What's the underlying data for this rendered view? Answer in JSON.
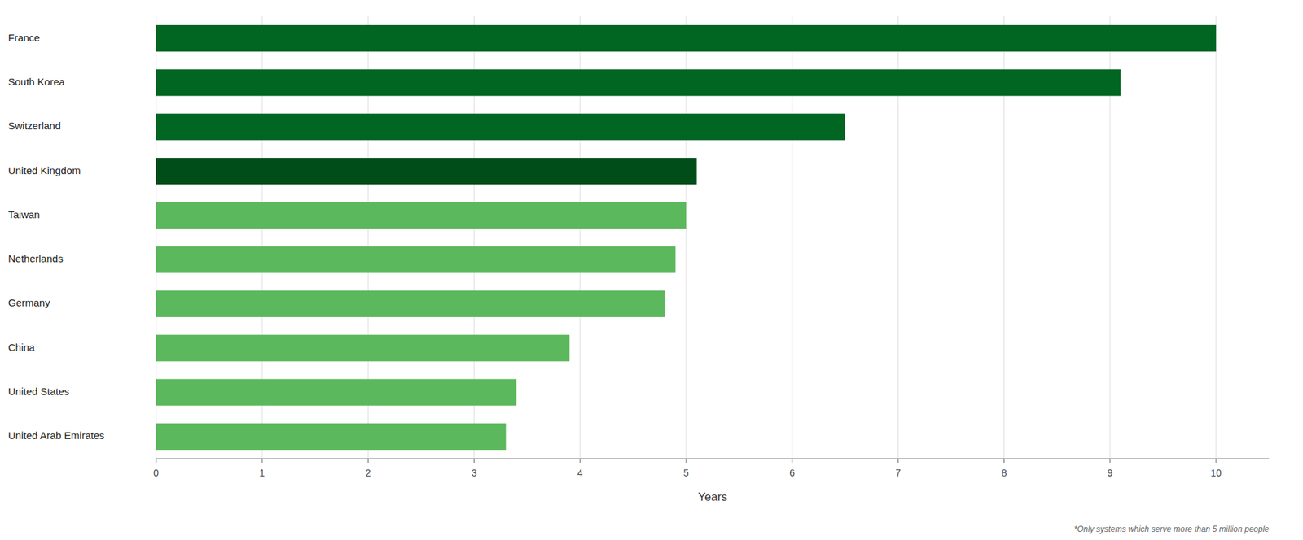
{
  "chart_data": {
    "type": "bar",
    "orientation": "horizontal",
    "categories": [
      "France",
      "South Korea",
      "Switzerland",
      "United Kingdom",
      "Taiwan",
      "Netherlands",
      "Germany",
      "China",
      "United States",
      "United Arab Emirates"
    ],
    "values": [
      10.0,
      9.1,
      6.5,
      5.1,
      5.0,
      4.9,
      4.8,
      3.9,
      3.4,
      3.3
    ],
    "colors": [
      "#006622",
      "#006622",
      "#006622",
      "#004d1a",
      "#5cb85c",
      "#5cb85c",
      "#5cb85c",
      "#5cb85c",
      "#5cb85c",
      "#5cb85c"
    ],
    "x_label": "Years",
    "xlim": [
      0,
      10.5
    ],
    "xticks": [
      0,
      1,
      2,
      3,
      4,
      5,
      6,
      7,
      8,
      9,
      10
    ],
    "grid": true,
    "annotations": [
      "*Only systems which serve more than 5 million people"
    ]
  }
}
